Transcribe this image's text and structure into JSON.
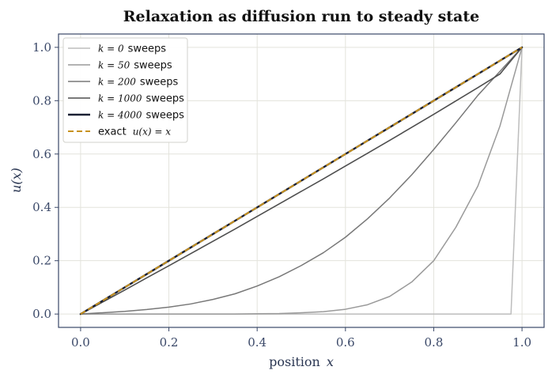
{
  "chart_data": {
    "type": "line",
    "title": "Relaxation as diffusion run to steady state",
    "xlabel": {
      "text": "position",
      "var": "x"
    },
    "ylabel": "u(x)",
    "xlim": [
      -0.05,
      1.05
    ],
    "ylim": [
      -0.05,
      1.05
    ],
    "xticks": [
      0.0,
      0.2,
      0.4,
      0.6,
      0.8,
      1.0
    ],
    "yticks": [
      0.0,
      0.2,
      0.4,
      0.6,
      0.8,
      1.0
    ],
    "tick_labels_x": [
      "0.0",
      "0.2",
      "0.4",
      "0.6",
      "0.8",
      "1.0"
    ],
    "tick_labels_y": [
      "0.0",
      "0.2",
      "0.4",
      "0.6",
      "0.8",
      "1.0"
    ],
    "grid": true,
    "legend_position": "top-left",
    "x": [
      0.0,
      0.05,
      0.1,
      0.15,
      0.2,
      0.25,
      0.3,
      0.35,
      0.4,
      0.45,
      0.5,
      0.55,
      0.6,
      0.65,
      0.7,
      0.75,
      0.8,
      0.85,
      0.9,
      0.95,
      1.0
    ],
    "series": [
      {
        "legend_math": "k = 0",
        "legend_text": "sweeps",
        "color": "#bdbdbd",
        "width": 1.5,
        "x": [
          0.0,
          0.975,
          1.0
        ],
        "values": [
          0.0,
          0.0,
          1.0
        ]
      },
      {
        "legend_math": "k = 50",
        "legend_text": "sweeps",
        "color": "#9a9a9a",
        "width": 1.5,
        "values": [
          0.0,
          0.0,
          0.0,
          0.0,
          0.0,
          0.0,
          0.0,
          0.0,
          0.001,
          0.002,
          0.005,
          0.009,
          0.018,
          0.035,
          0.066,
          0.12,
          0.2,
          0.325,
          0.48,
          0.705,
          1.0
        ]
      },
      {
        "legend_math": "k = 200",
        "legend_text": "sweeps",
        "color": "#787878",
        "width": 1.5,
        "values": [
          0.0,
          0.005,
          0.01,
          0.017,
          0.026,
          0.038,
          0.055,
          0.076,
          0.105,
          0.14,
          0.182,
          0.23,
          0.288,
          0.357,
          0.435,
          0.522,
          0.617,
          0.717,
          0.82,
          0.91,
          1.0
        ]
      },
      {
        "legend_math": "k = 1000",
        "legend_text": "sweeps",
        "color": "#4e4e4e",
        "width": 1.6,
        "values": [
          0.0,
          0.045,
          0.09,
          0.136,
          0.181,
          0.227,
          0.273,
          0.319,
          0.366,
          0.413,
          0.46,
          0.507,
          0.555,
          0.603,
          0.651,
          0.7,
          0.749,
          0.799,
          0.849,
          0.9,
          1.0
        ]
      },
      {
        "legend_math": "k = 4000",
        "legend_text": "sweeps",
        "color": "#1b2033",
        "width": 2.4,
        "values": [
          0.0,
          0.05,
          0.1,
          0.15,
          0.2,
          0.25,
          0.3,
          0.35,
          0.4,
          0.45,
          0.5,
          0.55,
          0.6,
          0.65,
          0.7,
          0.75,
          0.8,
          0.85,
          0.9,
          0.95,
          1.0
        ]
      },
      {
        "legend_math": "u(x) = x",
        "legend_text": "exact",
        "color": "#c8921e",
        "width": 2.0,
        "dashed": true,
        "values": [
          0.0,
          0.05,
          0.1,
          0.15,
          0.2,
          0.25,
          0.3,
          0.35,
          0.4,
          0.45,
          0.5,
          0.55,
          0.6,
          0.65,
          0.7,
          0.75,
          0.8,
          0.85,
          0.9,
          0.95,
          1.0
        ]
      }
    ]
  }
}
